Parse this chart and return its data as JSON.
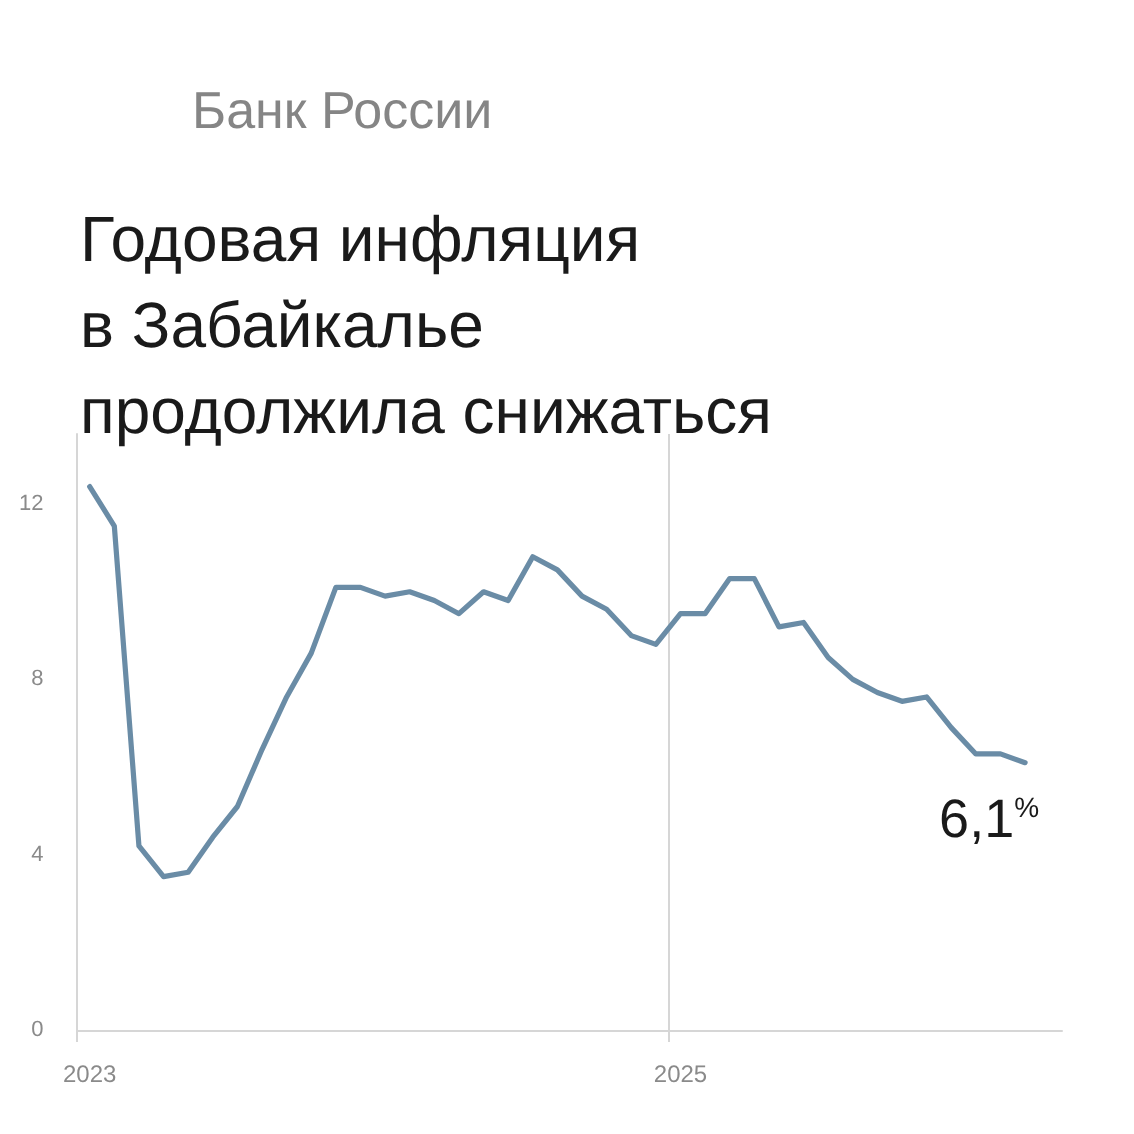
{
  "chart_data": {
    "type": "line",
    "title": "Годовая инфляция\nв Забайкалье\nпродолжила снижаться",
    "annotations": [
      "Банк России"
    ],
    "categories": [
      "2023",
      null,
      null,
      null,
      null,
      null,
      null,
      null,
      null,
      null,
      null,
      null,
      null,
      null,
      null,
      null,
      null,
      null,
      null,
      null,
      null,
      null,
      null,
      null,
      "2025",
      null,
      null,
      null,
      null,
      null,
      null,
      null,
      null,
      null,
      null,
      null,
      null,
      null,
      null,
      null
    ],
    "values": [
      12.4,
      11.5,
      4.2,
      3.5,
      3.6,
      4.4,
      5.1,
      6.4,
      7.6,
      8.6,
      10.1,
      10.1,
      9.9,
      10.0,
      9.8,
      9.5,
      10.0,
      9.8,
      10.8,
      10.5,
      9.9,
      9.6,
      9.0,
      8.8,
      9.5,
      9.5,
      10.3,
      10.3,
      9.2,
      9.3,
      8.5,
      8.0,
      7.7,
      7.5,
      7.6,
      6.9,
      6.3,
      6.3,
      6.1,
      null
    ],
    "value_labels": [
      null,
      null,
      null,
      null,
      null,
      null,
      null,
      null,
      null,
      null,
      null,
      null,
      null,
      null,
      null,
      null,
      null,
      null,
      null,
      null,
      null,
      null,
      null,
      null,
      null,
      null,
      null,
      null,
      null,
      null,
      null,
      null,
      null,
      null,
      null,
      null,
      null,
      null,
      "6,1$^{%}$",
      null
    ],
    "color": "#6a8ca6",
    "ylim": [
      0,
      13.6
    ],
    "yticks": [
      0,
      4,
      8,
      12
    ],
    "grid": "x"
  }
}
